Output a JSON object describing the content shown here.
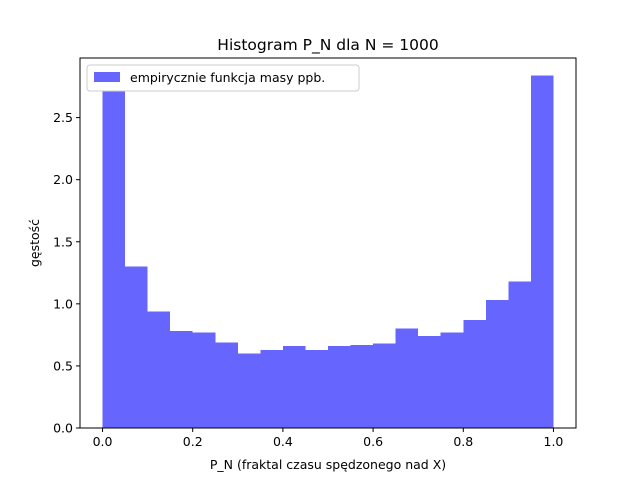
{
  "chart_data": {
    "type": "bar",
    "title": "Histogram P_N dla N = 1000",
    "xlabel": "P_N (fraktal czasu spędzonego nad X)",
    "ylabel": "gęstość",
    "legend": {
      "label": "empirycznie funkcja masy ppb.",
      "placement": "upper-left"
    },
    "bar_color": "#6666ff",
    "xlim": [
      -0.05,
      1.05
    ],
    "ylim": [
      0.0,
      2.98
    ],
    "xticks": [
      0.0,
      0.2,
      0.4,
      0.6,
      0.8,
      1.0
    ],
    "xtick_labels": [
      "0.0",
      "0.2",
      "0.4",
      "0.6",
      "0.8",
      "1.0"
    ],
    "yticks": [
      0.0,
      0.5,
      1.0,
      1.5,
      2.0,
      2.5
    ],
    "ytick_labels": [
      "0.0",
      "0.5",
      "1.0",
      "1.5",
      "2.0",
      "2.5"
    ],
    "bin_width": 0.05,
    "bin_starts": [
      0.0,
      0.05,
      0.1,
      0.15,
      0.2,
      0.25,
      0.3,
      0.35,
      0.4,
      0.45,
      0.5,
      0.55,
      0.6,
      0.65,
      0.7,
      0.75,
      0.8,
      0.85,
      0.9,
      0.95
    ],
    "values": [
      2.72,
      1.3,
      0.94,
      0.78,
      0.77,
      0.69,
      0.6,
      0.63,
      0.66,
      0.63,
      0.66,
      0.67,
      0.68,
      0.8,
      0.74,
      0.77,
      0.87,
      1.03,
      1.18,
      2.84
    ],
    "grid": false
  }
}
